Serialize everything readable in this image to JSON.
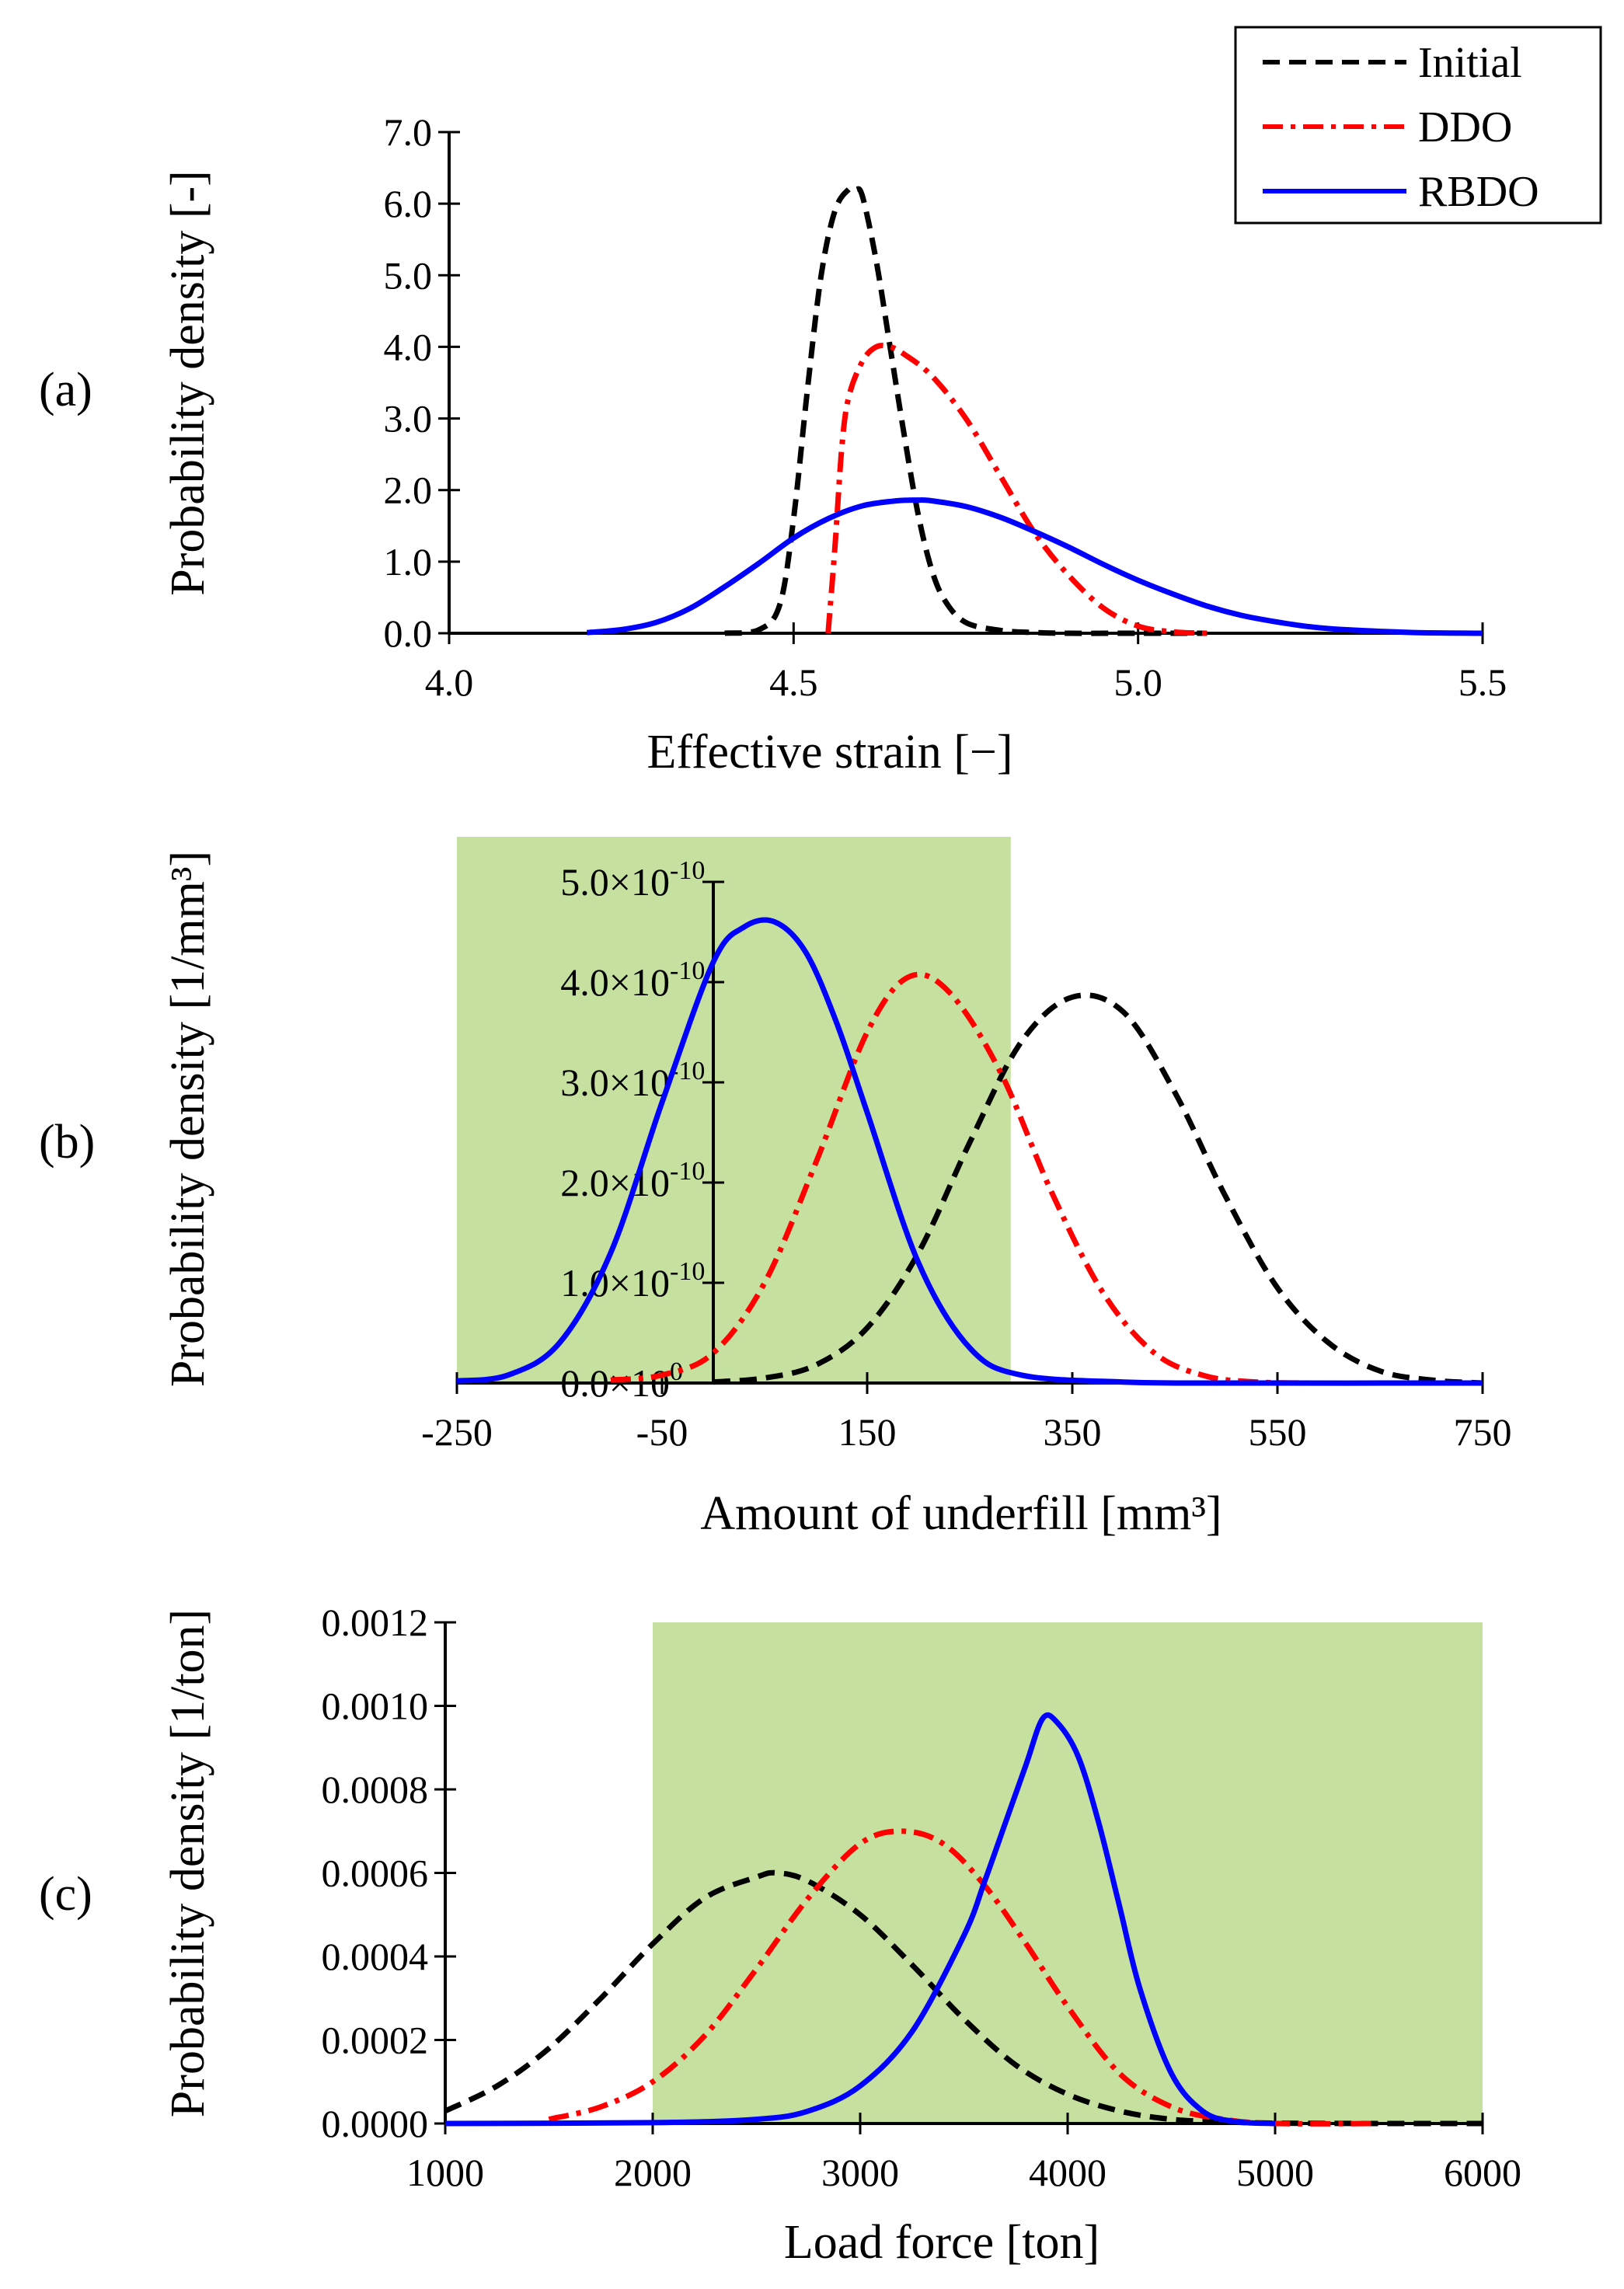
{
  "legend": {
    "entries": [
      {
        "label": "Initial",
        "color": "#000000",
        "dash": "dashed"
      },
      {
        "label": "DDO",
        "color": "#ff0000",
        "dash": "dashdot"
      },
      {
        "label": "RBDO",
        "color": "#0000ff",
        "dash": "solid"
      }
    ]
  },
  "chart_data": [
    {
      "panel": "(a)",
      "type": "line",
      "xlabel": "Effective strain [−]",
      "ylabel": "Probability density [-]",
      "xlim": [
        4.0,
        5.5
      ],
      "ylim": [
        0.0,
        7.0
      ],
      "xticks": [
        "4.0",
        "4.5",
        "5.0",
        "5.5"
      ],
      "yticks": [
        "0.0",
        "1.0",
        "2.0",
        "3.0",
        "4.0",
        "5.0",
        "6.0",
        "7.0"
      ],
      "shaded_region": null,
      "series": [
        {
          "name": "Initial",
          "color": "#000000",
          "dash": "dashed",
          "x": [
            4.4,
            4.45,
            4.48,
            4.5,
            4.52,
            4.54,
            4.56,
            4.58,
            4.59,
            4.6,
            4.62,
            4.64,
            4.66,
            4.68,
            4.7,
            4.72,
            4.75,
            4.8,
            4.85,
            4.9,
            5.0,
            5.1
          ],
          "y": [
            0.0,
            0.05,
            0.4,
            1.6,
            3.4,
            5.0,
            5.9,
            6.2,
            6.2,
            6.1,
            5.2,
            4.0,
            2.8,
            1.7,
            0.9,
            0.45,
            0.15,
            0.04,
            0.01,
            0.0,
            0.0,
            0.0
          ]
        },
        {
          "name": "DDO",
          "color": "#ff0000",
          "dash": "dashdot",
          "x": [
            4.55,
            4.56,
            4.57,
            4.58,
            4.6,
            4.62,
            4.64,
            4.66,
            4.7,
            4.75,
            4.8,
            4.85,
            4.9,
            4.95,
            5.0,
            5.05,
            5.1
          ],
          "y": [
            0.0,
            1.2,
            2.6,
            3.3,
            3.8,
            4.0,
            4.0,
            3.9,
            3.6,
            3.0,
            2.2,
            1.4,
            0.8,
            0.35,
            0.1,
            0.02,
            0.0
          ]
        },
        {
          "name": "RBDO",
          "color": "#0000ff",
          "dash": "solid",
          "x": [
            4.2,
            4.25,
            4.3,
            4.35,
            4.4,
            4.45,
            4.5,
            4.55,
            4.6,
            4.65,
            4.68,
            4.7,
            4.75,
            4.8,
            4.85,
            4.9,
            4.95,
            5.0,
            5.05,
            5.1,
            5.15,
            5.2,
            5.25,
            5.3,
            5.4,
            5.5
          ],
          "y": [
            0.01,
            0.05,
            0.15,
            0.35,
            0.65,
            0.98,
            1.33,
            1.6,
            1.78,
            1.85,
            1.86,
            1.85,
            1.77,
            1.62,
            1.42,
            1.2,
            0.96,
            0.74,
            0.55,
            0.38,
            0.25,
            0.16,
            0.09,
            0.05,
            0.01,
            0.0
          ]
        }
      ]
    },
    {
      "panel": "(b)",
      "type": "line",
      "xlabel": "Amount of underfill [mm³]",
      "ylabel": "Probability density [1/mm³]",
      "xlim": [
        -250,
        750
      ],
      "ylim": [
        0,
        5e-10
      ],
      "xticks": [
        "-250",
        "-50",
        "150",
        "350",
        "550",
        "750"
      ],
      "yticks": [
        "0.0×10",
        "1.0×10",
        "2.0×10",
        "3.0×10",
        "4.0×10",
        "5.0×10"
      ],
      "ytick_exponents": [
        "0",
        "-10",
        "-10",
        "-10",
        "-10",
        "-10"
      ],
      "y_axis_at_x": 0,
      "shaded_region": {
        "x": [
          -250,
          290
        ],
        "y": [
          0,
          5.5e-10
        ],
        "color": "#c6e0a0"
      },
      "series": [
        {
          "name": "Initial",
          "color": "#000000",
          "dash": "dashed",
          "x": [
            0,
            50,
            100,
            150,
            200,
            250,
            300,
            350,
            400,
            450,
            500,
            550,
            600,
            650,
            700,
            750
          ],
          "y": [
            1e-12,
            5e-12,
            1.8e-11,
            5.5e-11,
            1.3e-10,
            2.4e-10,
            3.4e-10,
            3.85e-10,
            3.7e-10,
            2.9e-10,
            1.85e-10,
            9.5e-11,
            4e-11,
            1.2e-11,
            3e-12,
            0.0
          ]
        },
        {
          "name": "DDO",
          "color": "#ff0000",
          "dash": "dashdot",
          "x": [
            -100,
            -50,
            0,
            50,
            100,
            150,
            190,
            230,
            280,
            330,
            380,
            430,
            480,
            530,
            580
          ],
          "y": [
            3e-12,
            8e-12,
            3e-11,
            1e-10,
            2.2e-10,
            3.5e-10,
            4.05e-10,
            3.9e-10,
            3.1e-10,
            1.9e-10,
            9e-11,
            3e-11,
            7e-12,
            1e-12,
            0.0
          ]
        },
        {
          "name": "RBDO",
          "color": "#0000ff",
          "dash": "solid",
          "x": [
            -250,
            -200,
            -150,
            -100,
            -50,
            0,
            30,
            60,
            90,
            120,
            150,
            200,
            250,
            300,
            400,
            500,
            750
          ],
          "y": [
            2e-12,
            8e-12,
            4e-11,
            1.3e-10,
            2.8e-10,
            4.2e-10,
            4.55e-10,
            4.6e-10,
            4.3e-10,
            3.6e-10,
            2.7e-10,
            1.2e-10,
            3.5e-11,
            8e-12,
            1e-12,
            0.0,
            0.0
          ]
        }
      ]
    },
    {
      "panel": "(c)",
      "type": "line",
      "xlabel": "Load force [ton]",
      "ylabel": "Probability density [1/ton]",
      "xlim": [
        1000,
        6000
      ],
      "ylim": [
        0,
        0.0012
      ],
      "xticks": [
        "1000",
        "2000",
        "3000",
        "4000",
        "5000",
        "6000"
      ],
      "yticks": [
        "0.0000",
        "0.0002",
        "0.0004",
        "0.0006",
        "0.0008",
        "0.0010",
        "0.0012"
      ],
      "shaded_region": {
        "x": [
          2000,
          6000
        ],
        "y": [
          0,
          0.0012
        ],
        "color": "#c6e0a0"
      },
      "series": [
        {
          "name": "Initial",
          "color": "#000000",
          "dash": "dashed",
          "x": [
            1000,
            1250,
            1500,
            1750,
            2000,
            2250,
            2500,
            2600,
            2750,
            3000,
            3250,
            3500,
            3750,
            4000,
            4250,
            4500,
            4750,
            5000,
            5500,
            6000
          ],
          "y": [
            3e-05,
            9e-05,
            0.00018,
            0.0003,
            0.00043,
            0.00054,
            0.00059,
            0.0006,
            0.00058,
            0.0005,
            0.00038,
            0.00025,
            0.00014,
            7e-05,
            3e-05,
            1e-05,
            4e-06,
            1e-06,
            0.0,
            0.0
          ]
        },
        {
          "name": "DDO",
          "color": "#ff0000",
          "dash": "dashdot",
          "x": [
            1500,
            1750,
            2000,
            2250,
            2500,
            2750,
            3000,
            3200,
            3400,
            3600,
            3800,
            4000,
            4250,
            4500,
            4750,
            5000,
            5500
          ],
          "y": [
            1e-05,
            4e-05,
            0.0001,
            0.00021,
            0.00037,
            0.00054,
            0.00067,
            0.0007,
            0.00067,
            0.00057,
            0.00043,
            0.00028,
            0.00012,
            4e-05,
            1e-05,
            0.0,
            0.0
          ]
        },
        {
          "name": "RBDO",
          "color": "#0000ff",
          "dash": "solid",
          "x": [
            1000,
            2000,
            2500,
            2750,
            3000,
            3250,
            3500,
            3600,
            3700,
            3800,
            3880,
            3950,
            4050,
            4150,
            4250,
            4350,
            4500,
            4650,
            4800,
            5000
          ],
          "y": [
            0.0,
            2e-06,
            1e-05,
            3e-05,
            9e-05,
            0.00022,
            0.00045,
            0.00058,
            0.00072,
            0.00086,
            0.00097,
            0.00096,
            0.00088,
            0.00072,
            0.00052,
            0.00032,
            0.00012,
            3e-05,
            5e-06,
            0.0
          ]
        }
      ]
    }
  ]
}
